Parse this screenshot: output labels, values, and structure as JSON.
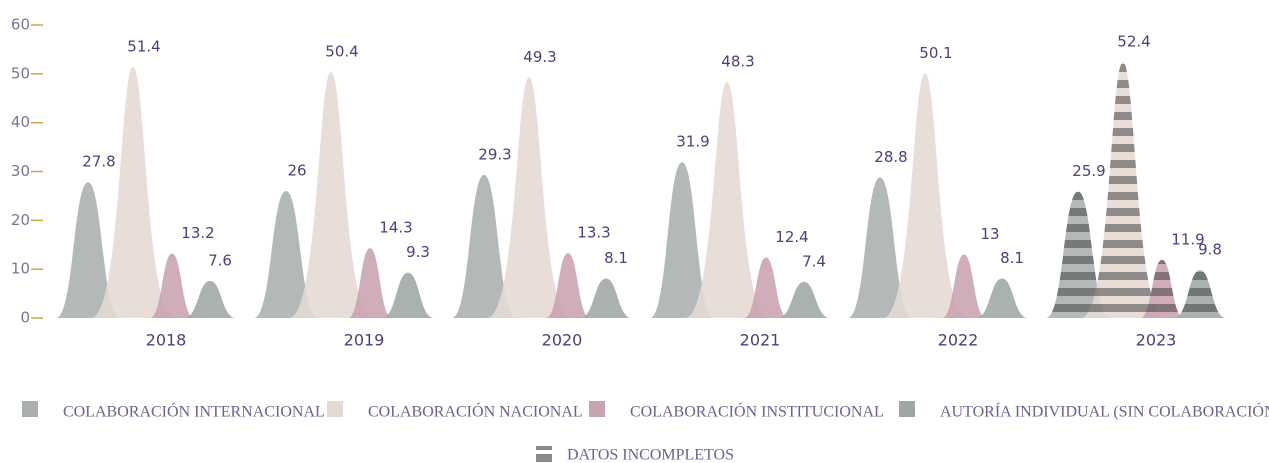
{
  "chart_data": {
    "type": "bar",
    "categories": [
      "2018",
      "2019",
      "2020",
      "2021",
      "2022",
      "2023"
    ],
    "series": [
      {
        "name": "COLABORACIÓN INTERNACIONAL",
        "color": "#a9aeae",
        "values": [
          27.8,
          26,
          29.3,
          31.9,
          28.8,
          25.9
        ]
      },
      {
        "name": "COLABORACIÓN NACIONAL",
        "color": "#e5dad2",
        "values": [
          51.4,
          50.4,
          49.3,
          48.3,
          50.1,
          52.4
        ]
      },
      {
        "name": "COLABORACIÓN INSTITUCIONAL",
        "color": "#c9a2b0",
        "values": [
          13.2,
          14.3,
          13.3,
          12.4,
          13,
          11.9
        ]
      },
      {
        "name": "AUTORÍA INDIVIDUAL (SIN COLABORACIÓN)",
        "color": "#9ea7a6",
        "values": [
          7.6,
          9.3,
          8.1,
          7.4,
          8.1,
          9.8
        ]
      }
    ],
    "ylim": [
      0,
      60
    ],
    "yticks": [
      0,
      10,
      20,
      30,
      40,
      50,
      60
    ],
    "incomplete_label": "DATOS INCOMPLETOS",
    "incomplete_categories": [
      "2023"
    ]
  }
}
